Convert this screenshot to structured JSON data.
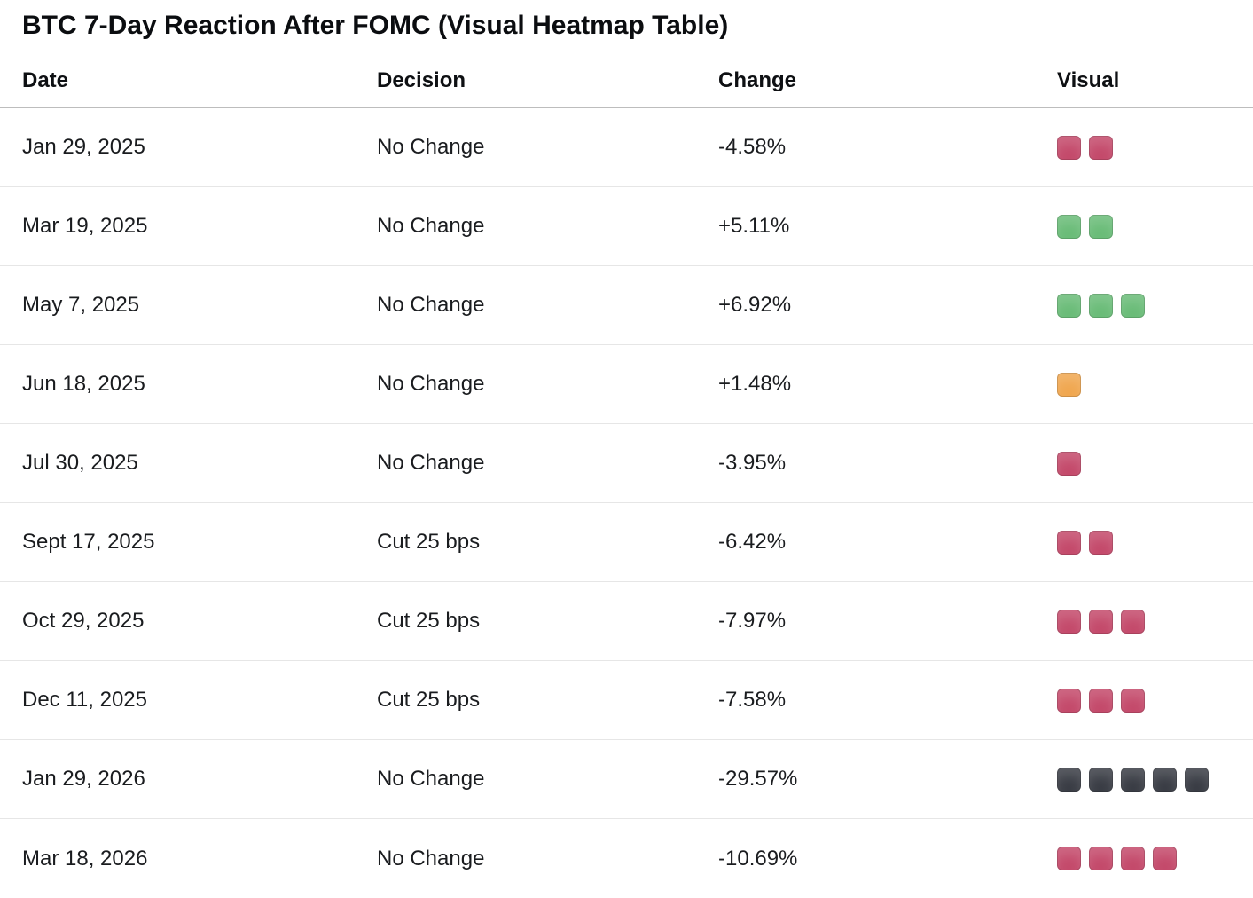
{
  "page": {
    "title": "BTC 7-Day Reaction After FOMC (Visual Heatmap Table)"
  },
  "table": {
    "headers": {
      "date": "Date",
      "decision": "Decision",
      "change": "Change",
      "visual": "Visual"
    },
    "rows": [
      {
        "date": "Jan 29, 2025",
        "decision": "No Change",
        "change": "-4.58%",
        "blocks": [
          "red",
          "red"
        ]
      },
      {
        "date": "Mar 19, 2025",
        "decision": "No Change",
        "change": "+5.11%",
        "blocks": [
          "green",
          "green"
        ]
      },
      {
        "date": "May 7, 2025",
        "decision": "No Change",
        "change": "+6.92%",
        "blocks": [
          "green",
          "green",
          "green"
        ]
      },
      {
        "date": "Jun 18, 2025",
        "decision": "No Change",
        "change": "+1.48%",
        "blocks": [
          "orange"
        ]
      },
      {
        "date": "Jul 30, 2025",
        "decision": "No Change",
        "change": "-3.95%",
        "blocks": [
          "red"
        ]
      },
      {
        "date": "Sept 17, 2025",
        "decision": "Cut 25 bps",
        "change": "-6.42%",
        "blocks": [
          "red",
          "red"
        ]
      },
      {
        "date": "Oct 29, 2025",
        "decision": "Cut 25 bps",
        "change": "-7.97%",
        "blocks": [
          "red",
          "red",
          "red"
        ]
      },
      {
        "date": "Dec 11, 2025",
        "decision": "Cut 25 bps",
        "change": "-7.58%",
        "blocks": [
          "red",
          "red",
          "red"
        ]
      },
      {
        "date": "Jan 29, 2026",
        "decision": "No Change",
        "change": "-29.57%",
        "blocks": [
          "dark",
          "dark",
          "dark",
          "dark",
          "dark"
        ]
      },
      {
        "date": "Mar 18, 2026",
        "decision": "No Change",
        "change": "-10.69%",
        "blocks": [
          "red",
          "red",
          "red",
          "red"
        ]
      }
    ]
  },
  "colors": {
    "red": "#c44a6b",
    "green": "#6abc78",
    "orange": "#f0a750",
    "dark": "#3a3d45"
  },
  "chart_data": {
    "type": "table",
    "title": "BTC 7-Day Reaction After FOMC (Visual Heatmap Table)",
    "columns": [
      "Date",
      "Decision",
      "Change",
      "Visual"
    ],
    "rows": [
      {
        "date": "Jan 29, 2025",
        "decision": "No Change",
        "change_pct": -4.58,
        "visual_block_count": 2,
        "visual_color": "red"
      },
      {
        "date": "Mar 19, 2025",
        "decision": "No Change",
        "change_pct": 5.11,
        "visual_block_count": 2,
        "visual_color": "green"
      },
      {
        "date": "May 7, 2025",
        "decision": "No Change",
        "change_pct": 6.92,
        "visual_block_count": 3,
        "visual_color": "green"
      },
      {
        "date": "Jun 18, 2025",
        "decision": "No Change",
        "change_pct": 1.48,
        "visual_block_count": 1,
        "visual_color": "orange"
      },
      {
        "date": "Jul 30, 2025",
        "decision": "No Change",
        "change_pct": -3.95,
        "visual_block_count": 1,
        "visual_color": "red"
      },
      {
        "date": "Sept 17, 2025",
        "decision": "Cut 25 bps",
        "change_pct": -6.42,
        "visual_block_count": 2,
        "visual_color": "red"
      },
      {
        "date": "Oct 29, 2025",
        "decision": "Cut 25 bps",
        "change_pct": -7.97,
        "visual_block_count": 3,
        "visual_color": "red"
      },
      {
        "date": "Dec 11, 2025",
        "decision": "Cut 25 bps",
        "change_pct": -7.58,
        "visual_block_count": 3,
        "visual_color": "red"
      },
      {
        "date": "Jan 29, 2026",
        "decision": "No Change",
        "change_pct": -29.57,
        "visual_block_count": 5,
        "visual_color": "dark"
      },
      {
        "date": "Mar 18, 2026",
        "decision": "No Change",
        "change_pct": -10.69,
        "visual_block_count": 4,
        "visual_color": "red"
      }
    ]
  }
}
